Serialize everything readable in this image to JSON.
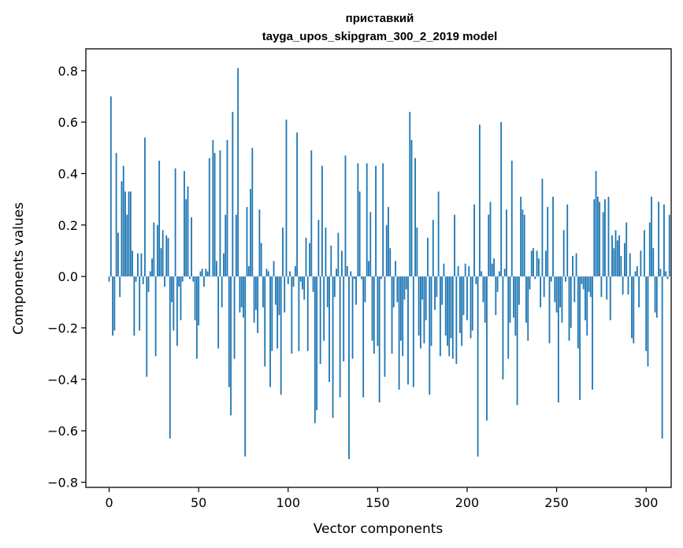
{
  "chart_data": {
    "type": "bar",
    "title": "приставкий",
    "subtitle": "tayga_upos_skipgram_300_2_2019 model",
    "xlabel": "Vector components",
    "ylabel": "Components values",
    "xlim": [
      -13,
      314
    ],
    "ylim": [
      -0.82,
      0.885
    ],
    "xticks": [
      0,
      50,
      100,
      150,
      200,
      250,
      300
    ],
    "xtick_labels": [
      "0",
      "50",
      "100",
      "150",
      "200",
      "250",
      "300"
    ],
    "yticks": [
      -0.8,
      -0.6,
      -0.4,
      -0.2,
      0.0,
      0.2,
      0.4,
      0.6,
      0.8
    ],
    "ytick_labels": [
      "−0.8",
      "−0.6",
      "−0.4",
      "−0.2",
      "0.0",
      "0.2",
      "0.4",
      "0.6",
      "0.8"
    ],
    "grid": false,
    "bar_color": "#1f77b4",
    "values": [
      -0.02,
      0.7,
      -0.23,
      -0.21,
      0.48,
      0.17,
      -0.08,
      0.37,
      0.43,
      0.33,
      0.24,
      0.33,
      0.33,
      0.1,
      -0.23,
      -0.02,
      0.09,
      -0.21,
      0.09,
      -0.03,
      0.54,
      -0.39,
      -0.06,
      0.02,
      0.07,
      0.21,
      -0.31,
      0.2,
      0.45,
      0.11,
      0.18,
      -0.04,
      0.16,
      0.15,
      -0.63,
      -0.1,
      -0.21,
      0.42,
      -0.27,
      -0.04,
      -0.17,
      -0.02,
      0.41,
      0.3,
      0.35,
      -0.01,
      0.23,
      -0.02,
      -0.17,
      -0.32,
      -0.19,
      0.02,
      0.03,
      -0.04,
      0.03,
      0.02,
      0.46,
      0.0,
      0.53,
      0.48,
      0.06,
      -0.28,
      0.49,
      -0.12,
      0.09,
      0.24,
      0.53,
      -0.43,
      -0.54,
      0.64,
      -0.32,
      0.24,
      0.81,
      -0.14,
      -0.12,
      -0.16,
      -0.7,
      0.27,
      0.04,
      0.34,
      0.5,
      -0.18,
      -0.13,
      -0.22,
      0.26,
      0.13,
      -0.12,
      -0.35,
      0.03,
      0.02,
      -0.43,
      -0.29,
      0.06,
      -0.11,
      -0.28,
      -0.15,
      -0.46,
      0.19,
      -0.14,
      0.61,
      -0.03,
      0.02,
      -0.3,
      -0.04,
      0.04,
      0.56,
      -0.29,
      -0.02,
      -0.05,
      -0.09,
      0.15,
      -0.29,
      0.13,
      0.49,
      -0.06,
      -0.57,
      -0.52,
      0.22,
      -0.34,
      0.43,
      -0.25,
      0.19,
      -0.12,
      -0.41,
      0.12,
      -0.55,
      -0.08,
      0.03,
      0.17,
      -0.47,
      0.1,
      -0.33,
      0.47,
      0.04,
      -0.71,
      0.02,
      -0.32,
      -0.01,
      -0.11,
      0.44,
      0.33,
      -0.01,
      -0.47,
      -0.1,
      0.44,
      0.06,
      0.25,
      -0.25,
      -0.3,
      0.43,
      -0.27,
      -0.49,
      -0.01,
      0.44,
      -0.39,
      0.2,
      0.27,
      0.11,
      -0.3,
      -0.12,
      0.06,
      -0.1,
      -0.44,
      -0.25,
      -0.31,
      -0.09,
      -0.05,
      -0.42,
      0.64,
      0.53,
      -0.43,
      0.46,
      0.19,
      -0.23,
      -0.28,
      -0.09,
      -0.26,
      -0.17,
      0.15,
      -0.46,
      -0.27,
      0.22,
      -0.13,
      -0.08,
      0.33,
      -0.31,
      -0.11,
      0.05,
      -0.23,
      -0.27,
      -0.31,
      -0.24,
      -0.32,
      0.24,
      -0.34,
      0.04,
      -0.22,
      -0.27,
      -0.15,
      0.05,
      -0.17,
      0.04,
      -0.24,
      -0.21,
      0.28,
      -0.03,
      -0.7,
      0.59,
      0.02,
      -0.1,
      -0.18,
      -0.56,
      0.24,
      0.29,
      0.05,
      0.07,
      -0.15,
      -0.06,
      0.02,
      0.6,
      -0.4,
      0.03,
      0.26,
      -0.32,
      -0.18,
      0.45,
      -0.16,
      -0.23,
      -0.5,
      -0.11,
      0.31,
      0.26,
      0.24,
      -0.18,
      -0.25,
      -0.05,
      0.1,
      0.11,
      -0.01,
      0.1,
      0.07,
      -0.12,
      0.38,
      -0.08,
      0.1,
      0.27,
      -0.26,
      -0.02,
      0.31,
      -0.1,
      -0.14,
      -0.49,
      -0.12,
      -0.18,
      0.18,
      -0.02,
      0.28,
      -0.25,
      -0.2,
      0.08,
      -0.1,
      0.09,
      -0.28,
      -0.48,
      -0.03,
      -0.05,
      -0.17,
      -0.23,
      -0.06,
      -0.08,
      -0.44,
      0.3,
      0.41,
      0.31,
      0.29,
      -0.08,
      0.25,
      0.3,
      -0.09,
      0.31,
      -0.17,
      0.16,
      0.11,
      0.18,
      0.14,
      0.16,
      0.08,
      -0.07,
      0.13,
      0.21,
      -0.07,
      0.09,
      -0.24,
      -0.26,
      0.02,
      0.04,
      -0.12,
      0.1,
      0.0,
      0.18,
      -0.29,
      -0.35,
      0.21,
      0.31,
      0.11,
      -0.14,
      -0.16,
      0.29,
      0.03,
      -0.63,
      0.28,
      0.02,
      -0.01,
      0.24
    ]
  }
}
